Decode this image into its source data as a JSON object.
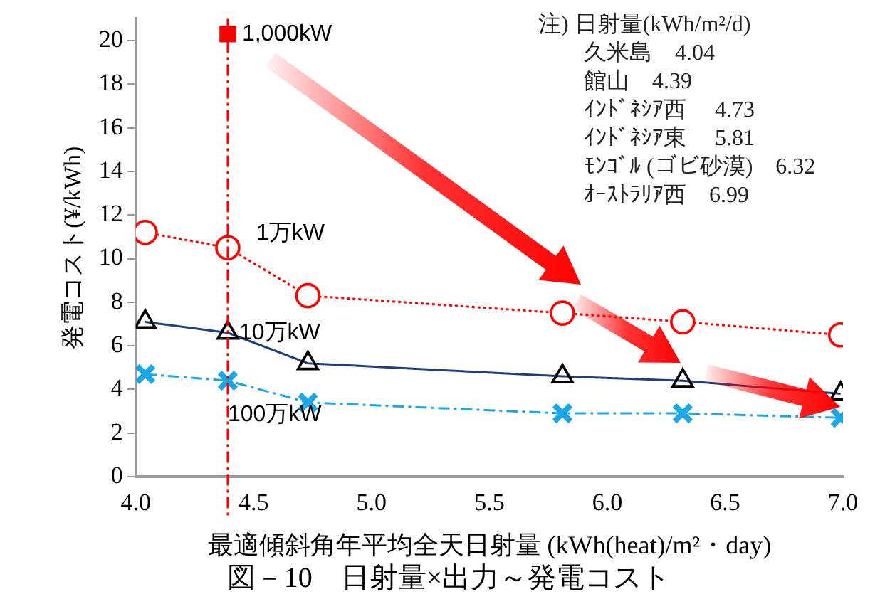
{
  "chart_data": {
    "type": "line",
    "title": "図－10　日射量×出力～発電コスト",
    "xlabel": "最適傾斜角年平均全天日射量 (kWh(heat)/m²・day)",
    "ylabel": "発電コスト(¥/kWh)",
    "annotations": [
      "注) 日射量(kWh/m²/d)",
      "久米島　4.04",
      "館山　4.39",
      "ｲﾝﾄﾞﾈｼｱ西　 4.73",
      "ｲﾝﾄﾞﾈｼｱ東　 5.81",
      "ﾓﾝｺﾞﾙ (ゴビ砂漠)　6.32",
      "ｵｰｽﾄﾗﾘｱ西　6.99"
    ],
    "series": [
      {
        "name": "1,000kW",
        "type": "scatter",
        "color": "#ff0000",
        "marker": "square",
        "x": [
          4.39
        ],
        "values": [
          20.3
        ]
      },
      {
        "name": "1万kW",
        "color": "#ff0000",
        "marker": "circle",
        "line_style": "dotted",
        "x": [
          4.04,
          4.39,
          4.73,
          5.81,
          6.32,
          6.99
        ],
        "values": [
          11.2,
          10.5,
          8.3,
          7.5,
          7.1,
          6.5
        ]
      },
      {
        "name": "10万kW",
        "color": "#1f3f7a",
        "marker": "triangle",
        "line_style": "solid",
        "x": [
          4.04,
          4.39,
          4.73,
          5.81,
          6.32,
          6.99
        ],
        "values": [
          7.1,
          6.6,
          5.2,
          4.6,
          4.4,
          3.8
        ]
      },
      {
        "name": "100万kW",
        "color": "#1aa7e8",
        "marker": "cross",
        "line_style": "dashed",
        "x": [
          4.04,
          4.39,
          4.73,
          5.81,
          6.32,
          6.99
        ],
        "values": [
          4.7,
          4.4,
          3.4,
          2.9,
          2.9,
          2.7
        ]
      }
    ],
    "ref_lines": [
      {
        "axis": "x",
        "value": 4.39,
        "color": "#ff0000",
        "line_style": "dashed"
      }
    ],
    "xlim": [
      4.0,
      7.0
    ],
    "xticks": [
      {
        "value": 4,
        "label": "4.0"
      },
      4.5,
      {
        "value": 5,
        "label": "5.0"
      },
      5.5,
      {
        "value": 6,
        "label": "6.0"
      },
      6.5,
      {
        "value": 7,
        "label": "7.0"
      }
    ],
    "ylim": [
      0,
      21
    ],
    "yticks": [
      0,
      2,
      4,
      6,
      8,
      10,
      12,
      14,
      16,
      18,
      20
    ],
    "grid": false,
    "legend": false
  }
}
